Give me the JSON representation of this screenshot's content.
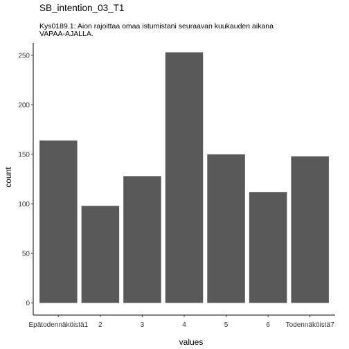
{
  "chart_data": {
    "type": "bar",
    "title": "SB_intention_03_T1",
    "subtitle": "Kys0189.1: Aion rajoittaa omaa istumistani seuraavan kuukauden aikana\nVAPAA-AJALLA.",
    "xlabel": "values",
    "ylabel": "count",
    "categories": [
      "Epätodennäköistä1",
      "2",
      "3",
      "4",
      "5",
      "6",
      "Todennäköistä7"
    ],
    "values": [
      164,
      98,
      128,
      253,
      150,
      112,
      148
    ],
    "ylim": [
      0,
      265
    ],
    "yticks": [
      0,
      50,
      100,
      150,
      200,
      250
    ],
    "grid": false,
    "bar_color": "#595959",
    "axis_color": "#000000"
  }
}
